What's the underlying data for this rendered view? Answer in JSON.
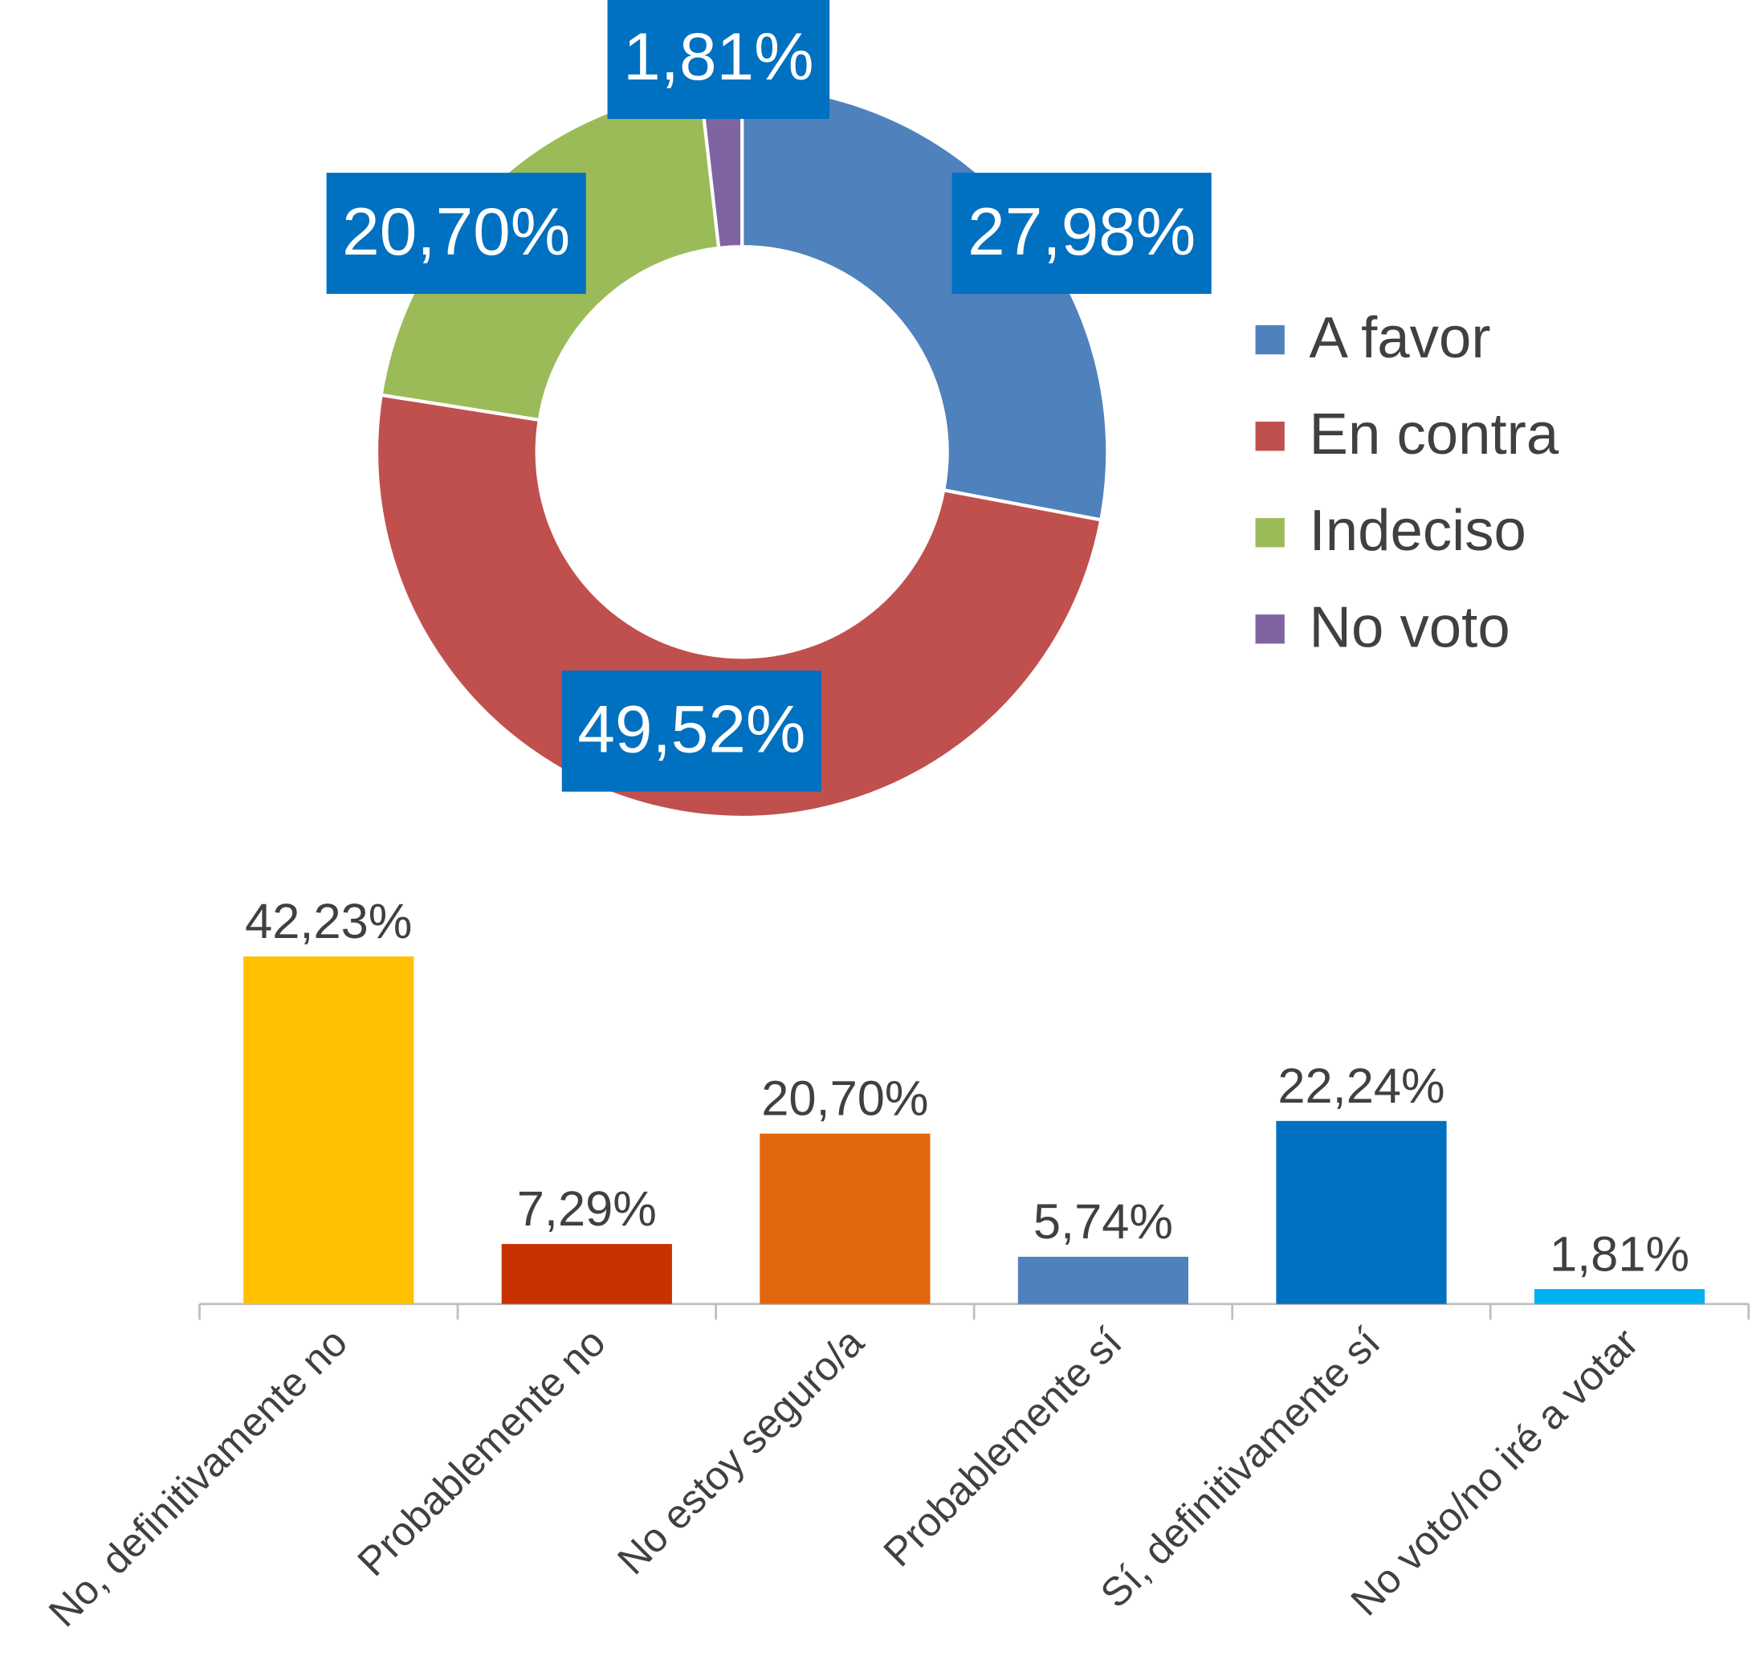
{
  "chart_data": [
    {
      "type": "pie",
      "hole": true,
      "categories": [
        "A favor",
        "En contra",
        "Indeciso",
        "No voto"
      ],
      "values": [
        27.98,
        49.52,
        20.7,
        1.81
      ],
      "value_labels": [
        "27,98%",
        "49,52%",
        "20,70%",
        "1,81%"
      ],
      "colors": [
        "#4f81bd",
        "#c0504d",
        "#9bbb59",
        "#8064a2"
      ],
      "legend": "right"
    },
    {
      "type": "bar",
      "categories": [
        "No, definitivamente no",
        "Probablemente no",
        "No estoy seguro/a",
        "Probablemente sí",
        "Sí, definitivamente sí",
        "No voto/no iré a votar"
      ],
      "values": [
        42.23,
        7.29,
        20.7,
        5.74,
        22.24,
        1.81
      ],
      "value_labels": [
        "42,23%",
        "7,29%",
        "20,70%",
        "5,74%",
        "22,24%",
        "1,81%"
      ],
      "colors": [
        "#ffc000",
        "#c83200",
        "#e2660c",
        "#4f81bd",
        "#0070c0",
        "#00b0f0"
      ]
    }
  ]
}
